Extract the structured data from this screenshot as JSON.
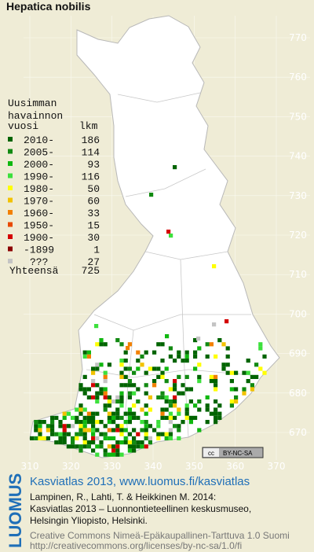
{
  "title": "Hepatica nobilis",
  "legend": {
    "header": [
      "Uusimman",
      "havainnon"
    ],
    "col_year": "vuosi",
    "col_count": "lkm",
    "items": [
      {
        "label": "2010-",
        "count": 186,
        "color": "#006400"
      },
      {
        "label": "2005-",
        "count": 114,
        "color": "#128a12"
      },
      {
        "label": "2000-",
        "count": 93,
        "color": "#10b810"
      },
      {
        "label": "1990-",
        "count": 116,
        "color": "#3ce03c"
      },
      {
        "label": "1980-",
        "count": 50,
        "color": "#ffff00"
      },
      {
        "label": "1970-",
        "count": 60,
        "color": "#f2c200"
      },
      {
        "label": "1960-",
        "count": 33,
        "color": "#f28000"
      },
      {
        "label": "1950-",
        "count": 15,
        "color": "#e84a00"
      },
      {
        "label": "1900-",
        "count": 30,
        "color": "#d40000"
      },
      {
        "label": "-1899",
        "count": 1,
        "color": "#8b0000"
      },
      {
        "label": "???",
        "count": 27,
        "color": "#c4c4c4"
      }
    ],
    "total_label": "Yhteensä",
    "total": 725
  },
  "map": {
    "xticks": [
      310,
      320,
      330,
      340,
      350,
      360,
      370
    ],
    "yticks": [
      770,
      760,
      750,
      740,
      730,
      720,
      710,
      700,
      690,
      680,
      670
    ]
  },
  "badge": {
    "cc": "cc",
    "license": "BY-NC-SA"
  },
  "footer": {
    "logo": "LUOMUS",
    "heading": "Kasviatlas 2013, www.luomus.fi/kasviatlas",
    "citation": [
      "Lampinen, R., Lahti, T. & Heikkinen M. 2014:",
      "Kasviatlas 2013 – Luonnontieteellinen keskusmuseo,",
      "Helsingin Yliopisto, Helsinki."
    ],
    "license": [
      "Creative Commons Nimeä-Epäkaupallinen-Tarttuva 1.0 Suomi",
      "http://creativecommons.org/licenses/by-nc-sa/1.0/fi"
    ]
  }
}
